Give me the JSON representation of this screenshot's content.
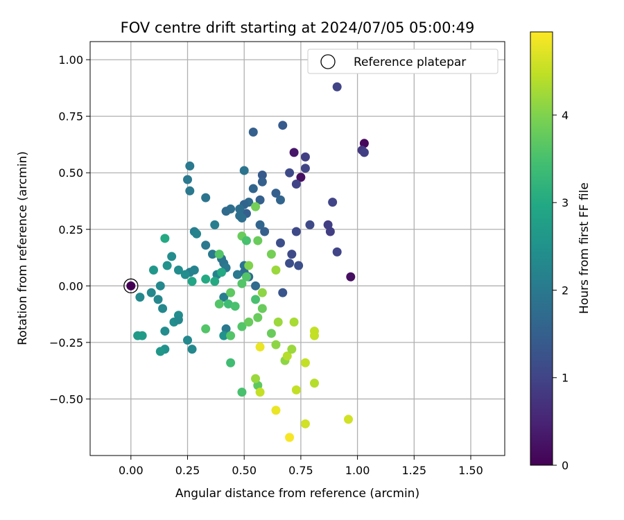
{
  "chart_data": {
    "type": "scatter",
    "title": "FOV centre drift starting at 2024/07/05 05:00:49",
    "xlabel": "Angular distance from reference (arcmin)",
    "ylabel": "Rotation from reference (arcmin)",
    "xlim": [
      -0.18,
      1.65
    ],
    "ylim": [
      -0.75,
      1.08
    ],
    "xticks": [
      0.0,
      0.25,
      0.5,
      0.75,
      1.0,
      1.25,
      1.5
    ],
    "xtick_labels": [
      "0.00",
      "0.25",
      "0.50",
      "0.75",
      "1.00",
      "1.25",
      "1.50"
    ],
    "yticks": [
      -0.5,
      -0.25,
      0.0,
      0.25,
      0.5,
      0.75,
      1.0
    ],
    "ytick_labels": [
      "−0.50",
      "−0.25",
      "0.00",
      "0.25",
      "0.50",
      "0.75",
      "1.00"
    ],
    "grid": true,
    "legend_position": "top-right",
    "legend": [
      {
        "label": "Reference platepar",
        "marker": "open-circle"
      }
    ],
    "reference_point": {
      "x": 0.0,
      "y": 0.0
    },
    "colorbar": {
      "label": "Hours from first FF file",
      "colormap": "viridis",
      "range": [
        0,
        4.95
      ],
      "ticks": [
        0,
        1,
        2,
        3,
        4
      ],
      "tick_labels": [
        "0",
        "1",
        "2",
        "3",
        "4"
      ]
    },
    "points": [
      {
        "x": 0.0,
        "y": 0.0,
        "c": 0.0
      },
      {
        "x": 0.72,
        "y": 0.59,
        "c": 0.3
      },
      {
        "x": 0.75,
        "y": 0.48,
        "c": 0.2
      },
      {
        "x": 1.03,
        "y": 0.63,
        "c": 0.1
      },
      {
        "x": 0.97,
        "y": 0.04,
        "c": 0.2
      },
      {
        "x": 1.02,
        "y": 0.6,
        "c": 0.8
      },
      {
        "x": 1.03,
        "y": 0.59,
        "c": 0.9
      },
      {
        "x": 0.91,
        "y": 0.88,
        "c": 1.0
      },
      {
        "x": 0.77,
        "y": 0.57,
        "c": 0.9
      },
      {
        "x": 0.77,
        "y": 0.52,
        "c": 1.0
      },
      {
        "x": 0.7,
        "y": 0.5,
        "c": 1.1
      },
      {
        "x": 0.73,
        "y": 0.45,
        "c": 1.0
      },
      {
        "x": 0.89,
        "y": 0.37,
        "c": 1.0
      },
      {
        "x": 0.87,
        "y": 0.27,
        "c": 0.9
      },
      {
        "x": 0.88,
        "y": 0.24,
        "c": 0.9
      },
      {
        "x": 0.91,
        "y": 0.15,
        "c": 1.0
      },
      {
        "x": 0.79,
        "y": 0.27,
        "c": 1.1
      },
      {
        "x": 0.73,
        "y": 0.24,
        "c": 1.1
      },
      {
        "x": 0.66,
        "y": 0.19,
        "c": 1.2
      },
      {
        "x": 0.71,
        "y": 0.14,
        "c": 1.1
      },
      {
        "x": 0.7,
        "y": 0.1,
        "c": 1.2
      },
      {
        "x": 0.74,
        "y": 0.09,
        "c": 1.2
      },
      {
        "x": 0.67,
        "y": -0.03,
        "c": 1.3
      },
      {
        "x": 0.67,
        "y": 0.71,
        "c": 1.4
      },
      {
        "x": 0.54,
        "y": 0.68,
        "c": 1.5
      },
      {
        "x": 0.58,
        "y": 0.49,
        "c": 1.4
      },
      {
        "x": 0.58,
        "y": 0.46,
        "c": 1.5
      },
      {
        "x": 0.64,
        "y": 0.41,
        "c": 1.5
      },
      {
        "x": 0.66,
        "y": 0.38,
        "c": 1.6
      },
      {
        "x": 0.57,
        "y": 0.38,
        "c": 1.5
      },
      {
        "x": 0.54,
        "y": 0.43,
        "c": 1.6
      },
      {
        "x": 0.52,
        "y": 0.37,
        "c": 1.7
      },
      {
        "x": 0.5,
        "y": 0.36,
        "c": 1.6
      },
      {
        "x": 0.51,
        "y": 0.32,
        "c": 1.5
      },
      {
        "x": 0.48,
        "y": 0.34,
        "c": 1.8
      },
      {
        "x": 0.48,
        "y": 0.31,
        "c": 1.8
      },
      {
        "x": 0.49,
        "y": 0.3,
        "c": 1.8
      },
      {
        "x": 0.57,
        "y": 0.27,
        "c": 1.6
      },
      {
        "x": 0.59,
        "y": 0.24,
        "c": 1.5
      },
      {
        "x": 0.5,
        "y": 0.51,
        "c": 1.9
      },
      {
        "x": 0.44,
        "y": 0.34,
        "c": 1.8
      },
      {
        "x": 0.42,
        "y": 0.33,
        "c": 1.7
      },
      {
        "x": 0.37,
        "y": 0.27,
        "c": 2.1
      },
      {
        "x": 0.33,
        "y": 0.39,
        "c": 1.9
      },
      {
        "x": 0.26,
        "y": 0.53,
        "c": 2.0
      },
      {
        "x": 0.25,
        "y": 0.47,
        "c": 2.0
      },
      {
        "x": 0.26,
        "y": 0.42,
        "c": 2.0
      },
      {
        "x": 0.28,
        "y": 0.24,
        "c": 2.1
      },
      {
        "x": 0.29,
        "y": 0.23,
        "c": 2.2
      },
      {
        "x": 0.33,
        "y": 0.18,
        "c": 2.0
      },
      {
        "x": 0.36,
        "y": 0.14,
        "c": 2.0
      },
      {
        "x": 0.4,
        "y": 0.12,
        "c": 1.9
      },
      {
        "x": 0.41,
        "y": 0.1,
        "c": 1.9
      },
      {
        "x": 0.42,
        "y": 0.08,
        "c": 2.0
      },
      {
        "x": 0.5,
        "y": 0.09,
        "c": 1.9
      },
      {
        "x": 0.5,
        "y": 0.06,
        "c": 1.8
      },
      {
        "x": 0.52,
        "y": 0.04,
        "c": 1.7
      },
      {
        "x": 0.55,
        "y": 0.0,
        "c": 1.7
      },
      {
        "x": 0.47,
        "y": 0.05,
        "c": 2.0
      },
      {
        "x": 0.41,
        "y": -0.05,
        "c": 2.1
      },
      {
        "x": 0.42,
        "y": -0.19,
        "c": 2.0
      },
      {
        "x": 0.38,
        "y": 0.05,
        "c": 2.2
      },
      {
        "x": 0.41,
        "y": -0.22,
        "c": 2.5
      },
      {
        "x": 0.26,
        "y": 0.06,
        "c": 2.1
      },
      {
        "x": 0.28,
        "y": 0.07,
        "c": 2.2
      },
      {
        "x": 0.21,
        "y": 0.07,
        "c": 2.4
      },
      {
        "x": 0.24,
        "y": 0.05,
        "c": 2.4
      },
      {
        "x": 0.18,
        "y": 0.13,
        "c": 2.4
      },
      {
        "x": 0.16,
        "y": 0.09,
        "c": 2.5
      },
      {
        "x": 0.1,
        "y": 0.07,
        "c": 2.6
      },
      {
        "x": 0.13,
        "y": 0.0,
        "c": 2.3
      },
      {
        "x": 0.09,
        "y": -0.03,
        "c": 2.3
      },
      {
        "x": 0.04,
        "y": -0.05,
        "c": 2.3
      },
      {
        "x": 0.12,
        "y": -0.06,
        "c": 2.3
      },
      {
        "x": 0.14,
        "y": -0.1,
        "c": 2.3
      },
      {
        "x": 0.19,
        "y": -0.16,
        "c": 2.4
      },
      {
        "x": 0.21,
        "y": -0.13,
        "c": 2.4
      },
      {
        "x": 0.21,
        "y": -0.15,
        "c": 2.3
      },
      {
        "x": 0.15,
        "y": -0.2,
        "c": 2.4
      },
      {
        "x": 0.25,
        "y": -0.24,
        "c": 2.3
      },
      {
        "x": 0.27,
        "y": -0.28,
        "c": 2.3
      },
      {
        "x": 0.15,
        "y": -0.28,
        "c": 2.5
      },
      {
        "x": 0.13,
        "y": -0.29,
        "c": 2.6
      },
      {
        "x": 0.03,
        "y": -0.22,
        "c": 2.7
      },
      {
        "x": 0.05,
        "y": -0.22,
        "c": 2.7
      },
      {
        "x": 0.15,
        "y": 0.21,
        "c": 3.0
      },
      {
        "x": 0.27,
        "y": 0.02,
        "c": 2.9
      },
      {
        "x": 0.33,
        "y": 0.03,
        "c": 3.0
      },
      {
        "x": 0.37,
        "y": 0.02,
        "c": 3.0
      },
      {
        "x": 0.4,
        "y": 0.06,
        "c": 3.0
      },
      {
        "x": 0.39,
        "y": 0.14,
        "c": 3.6
      },
      {
        "x": 0.49,
        "y": 0.22,
        "c": 3.8
      },
      {
        "x": 0.51,
        "y": 0.2,
        "c": 3.5
      },
      {
        "x": 0.55,
        "y": 0.35,
        "c": 3.9
      },
      {
        "x": 0.56,
        "y": 0.2,
        "c": 3.8
      },
      {
        "x": 0.51,
        "y": 0.04,
        "c": 3.6
      },
      {
        "x": 0.52,
        "y": 0.09,
        "c": 4.0
      },
      {
        "x": 0.49,
        "y": 0.01,
        "c": 3.6
      },
      {
        "x": 0.44,
        "y": -0.03,
        "c": 3.7
      },
      {
        "x": 0.39,
        "y": -0.08,
        "c": 3.6
      },
      {
        "x": 0.43,
        "y": -0.08,
        "c": 3.4
      },
      {
        "x": 0.46,
        "y": -0.09,
        "c": 3.5
      },
      {
        "x": 0.33,
        "y": -0.19,
        "c": 3.6
      },
      {
        "x": 0.44,
        "y": -0.22,
        "c": 3.6
      },
      {
        "x": 0.49,
        "y": -0.18,
        "c": 3.6
      },
      {
        "x": 0.52,
        "y": -0.16,
        "c": 3.8
      },
      {
        "x": 0.56,
        "y": -0.14,
        "c": 3.8
      },
      {
        "x": 0.55,
        "y": -0.06,
        "c": 3.5
      },
      {
        "x": 0.58,
        "y": -0.03,
        "c": 4.1
      },
      {
        "x": 0.58,
        "y": -0.1,
        "c": 3.8
      },
      {
        "x": 0.62,
        "y": 0.14,
        "c": 3.9
      },
      {
        "x": 0.64,
        "y": 0.07,
        "c": 4.2
      },
      {
        "x": 0.44,
        "y": -0.34,
        "c": 3.4
      },
      {
        "x": 0.49,
        "y": -0.47,
        "c": 3.5
      },
      {
        "x": 0.56,
        "y": -0.44,
        "c": 3.7
      },
      {
        "x": 0.55,
        "y": -0.41,
        "c": 4.2
      },
      {
        "x": 0.57,
        "y": -0.47,
        "c": 4.5
      },
      {
        "x": 0.62,
        "y": -0.21,
        "c": 3.8
      },
      {
        "x": 0.64,
        "y": -0.26,
        "c": 4.1
      },
      {
        "x": 0.65,
        "y": -0.16,
        "c": 4.2
      },
      {
        "x": 0.57,
        "y": -0.27,
        "c": 4.8
      },
      {
        "x": 0.68,
        "y": -0.33,
        "c": 4.1
      },
      {
        "x": 0.69,
        "y": -0.31,
        "c": 4.4
      },
      {
        "x": 0.71,
        "y": -0.28,
        "c": 4.2
      },
      {
        "x": 0.72,
        "y": -0.16,
        "c": 4.3
      },
      {
        "x": 0.73,
        "y": -0.46,
        "c": 4.5
      },
      {
        "x": 0.77,
        "y": -0.34,
        "c": 4.5
      },
      {
        "x": 0.81,
        "y": -0.2,
        "c": 4.5
      },
      {
        "x": 0.81,
        "y": -0.22,
        "c": 4.5
      },
      {
        "x": 0.81,
        "y": -0.43,
        "c": 4.4
      },
      {
        "x": 0.64,
        "y": -0.55,
        "c": 4.8
      },
      {
        "x": 0.7,
        "y": -0.67,
        "c": 4.9
      },
      {
        "x": 0.77,
        "y": -0.61,
        "c": 4.6
      },
      {
        "x": 0.96,
        "y": -0.59,
        "c": 4.6
      }
    ]
  }
}
